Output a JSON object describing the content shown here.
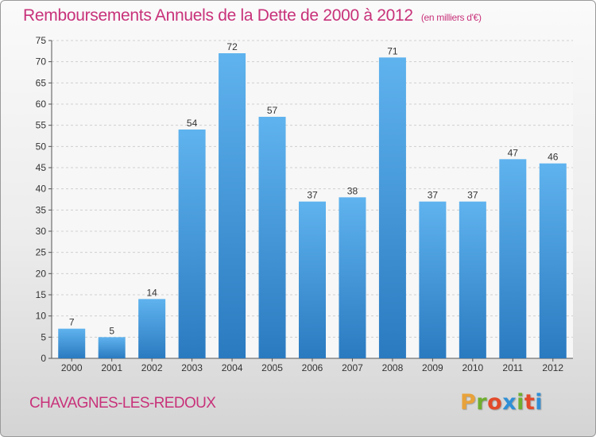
{
  "header": {
    "title": "Remboursements Annuels de la Dette de 2000 à 2012",
    "unit": "(en milliers d'€)"
  },
  "footer": {
    "commune": "CHAVAGNES-LES-REDOUX",
    "logo_text": "Proxiti",
    "logo_colors": [
      "#e8a23a",
      "#6fae2f",
      "#e24a2a",
      "#2f8fd6",
      "#6fae2f",
      "#e24a2a",
      "#2f8fd6"
    ]
  },
  "colors": {
    "accent": "#c8327a",
    "bar_top": "#5fb3ee",
    "bar_bottom": "#2a7ac0"
  },
  "chart_data": {
    "type": "bar",
    "categories": [
      "2000",
      "2001",
      "2002",
      "2003",
      "2004",
      "2005",
      "2006",
      "2007",
      "2008",
      "2009",
      "2010",
      "2011",
      "2012"
    ],
    "values": [
      7,
      5,
      14,
      54,
      72,
      57,
      37,
      38,
      71,
      37,
      37,
      47,
      46
    ],
    "ylim": [
      0,
      75
    ],
    "ytick_step": 5,
    "grid": true,
    "data_labels": true
  }
}
